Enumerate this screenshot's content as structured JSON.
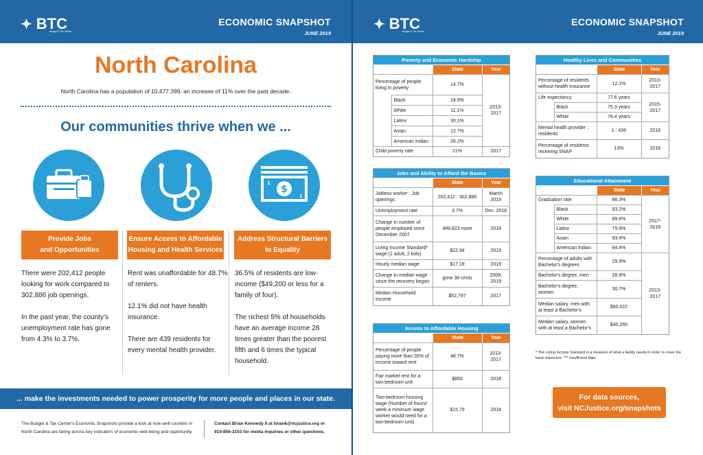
{
  "header": {
    "logo": "BTC",
    "logo_sub": "Budget & Tax Center",
    "title": "ECONOMIC SNAPSHOT",
    "date": "JUNE 2019"
  },
  "left": {
    "state": "North Carolina",
    "population": "North Carolina has a population of 10,477,399, an increase of 11% over the past decade.",
    "thrive": "Our communities thrive when we ...",
    "columns": [
      {
        "label": "Provide Jobs\nand Opportunities",
        "texts": [
          "There were 202,412 people looking for work compared to 302,886 job openings.",
          "In the past year, the county's unemployment rate has gone from 4.3% to 3.7%."
        ]
      },
      {
        "label": "Ensure Access to Affordable Housing and Health Services",
        "texts": [
          "Rent was unaffordable for 48.7% of renters.",
          "12.1% did not have health insurance.",
          "There are 439 residents for every mental health provider."
        ]
      },
      {
        "label": "Address Structural Barriers to Equality",
        "texts": [
          "36.5% of residents are low-income ($49,200 or less for a family of four).",
          "The richest 5% of households have an average income 28 times greater than the poorest fifth and 6 times the typical household."
        ]
      }
    ],
    "banner": "... make the investments needed to power prosperity for more people and places in our state.",
    "footer_left": "The Budget & Tax Center's Economic Snapshots provide a look at how well counties in North Carolina are faring across key indicators of economic well-being and opportunity.",
    "footer_right": "Contact Brian Kennedy II at briank@ncjustice.org or 919-856-2153 for media inquiries or other questions."
  },
  "col_state": "State",
  "col_year": "Year",
  "poverty": {
    "title": "Poverty and Economic Hardship",
    "main_label": "Percentage of people living in poverty",
    "main_value": "14.7%",
    "year": "2013-\n2017",
    "subs": [
      {
        "label": "Black",
        "value": "24.9%"
      },
      {
        "label": "White",
        "value": "11.1%"
      },
      {
        "label": "Latinx",
        "value": "30.1%"
      },
      {
        "label": "Asian",
        "value": "12.7%"
      },
      {
        "label": "American Indian",
        "value": "26.2%"
      }
    ],
    "child_label": "Child poverty rate",
    "child_value": "21%",
    "child_year": "2017"
  },
  "jobs": {
    "title": "Jobs and Ability to Afford the Basics",
    "rows": [
      {
        "label": "Jobless worker : Job openings",
        "value": "202,412 : 302,886",
        "year": "March\n2019"
      },
      {
        "label": "Unemployment rate",
        "value": "3.7%",
        "year": "Dec. 2018"
      },
      {
        "label": "Change in number of people employed since December 2007",
        "value": "489,823 more",
        "year": "2018"
      },
      {
        "label": "Living Income Standard* wage (1 adult, 2 kids)",
        "value": "$22.94",
        "year": "2019"
      },
      {
        "label": "Hourly median wage",
        "value": "$17.19",
        "year": "2019"
      },
      {
        "label": "Change in median wage since the recovery began",
        "value": "grew 38 cents",
        "year": "2009,\n2019"
      },
      {
        "label": "Median Household Income",
        "value": "$52,797",
        "year": "2017"
      }
    ]
  },
  "housing": {
    "title": "Access to Affordable Housing",
    "rows": [
      {
        "label": "Percentage of people paying more than 30% of income toward rent",
        "value": "48.7%",
        "year": "2013-\n2017"
      },
      {
        "label": "Fair market rent for a two-bedroom unit",
        "value": "$850",
        "year": "2018"
      },
      {
        "label": "Two-bedroom housing wage (Number of hours/ week a minimum wage worker would need for a two-bedroom unit)",
        "value": "$15.79",
        "year": "2018"
      }
    ]
  },
  "health": {
    "title": "Healthy Lives and Communities",
    "uninsured_label": "Percentage of residents without health insurance",
    "uninsured_value": "12.1%",
    "uninsured_year": "2013-\n2017",
    "life_label": "Life expectancy",
    "life_value": "77.6 years",
    "life_year": "2015-\n2017",
    "life_subs": [
      {
        "label": "Black",
        "value": "75.3 years"
      },
      {
        "label": "White",
        "value": "78.4 years"
      }
    ],
    "mental_label": "Mental health provider : residents",
    "mental_value": "1 : 439",
    "mental_year": "2019",
    "snap_label": "Percentage of residents receiving SNAP",
    "snap_value": "13%",
    "snap_year": "2018"
  },
  "education": {
    "title": "Educational Attainment",
    "grad_label": "Graduation rate",
    "grad_value": "86.3%",
    "grad_year": "2017-\n2018",
    "subs": [
      {
        "label": "Black",
        "value": "83.2%"
      },
      {
        "label": "White",
        "value": "89.6%"
      },
      {
        "label": "Latinx",
        "value": "79.9%"
      },
      {
        "label": "Asian",
        "value": "93.4%"
      },
      {
        "label": "American Indian",
        "value": "84.4%"
      }
    ],
    "rows": [
      {
        "label": "Percentage of adults with Bachelor's degrees",
        "value": "29.9%"
      },
      {
        "label": "Bachelor's degree, men",
        "value": "28.9%"
      },
      {
        "label": "Bachelor's degree, women",
        "value": "30.7%"
      },
      {
        "label": "Median salary, men with at least a Bachelor's",
        "value": "$60,022"
      },
      {
        "label": "Median salary, women with at least a Bachelor's",
        "value": "$40,260"
      }
    ],
    "rows_year": "2013-\n2017"
  },
  "note": "* The Living Income Standard is a measure of what a family needs in order to cover the basic expenses. *** Insufficient data",
  "cta": {
    "line1": "For data sources,",
    "line2": "visit NCJustice.org/snapshots"
  },
  "colors": {
    "blue": "#2268a6",
    "light_blue": "#2a9fd8",
    "orange": "#e87722"
  },
  "icons": [
    "briefcase-icon",
    "stethoscope-icon",
    "money-icon"
  ]
}
